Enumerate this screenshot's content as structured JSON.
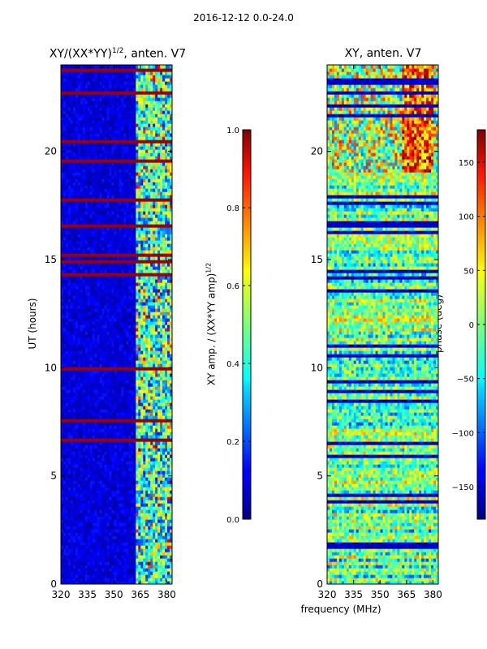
{
  "suptitle": "2016-12-12 0.0-24.0",
  "chart_data": [
    {
      "type": "heatmap",
      "title_main": "XY/(XX*YY)",
      "title_sup": "1/2",
      "title_rest": ", anten. V7",
      "xlabel": "",
      "ylabel": "UT (hours)",
      "xlim": [
        320,
        383
      ],
      "ylim": [
        0,
        24
      ],
      "xticks": [
        320,
        335,
        350,
        365,
        380
      ],
      "yticks": [
        0,
        5,
        10,
        15,
        20
      ],
      "ytick_labels": [
        "0",
        "5",
        "10",
        "15",
        "20"
      ],
      "colorbar": {
        "label_main": "XY amp. / (XX*YY amp)",
        "label_sup": "1/2",
        "range": [
          0.0,
          1.0
        ],
        "ticks": [
          "0.0",
          "0.2",
          "0.4",
          "0.6",
          "0.8",
          "1.0"
        ],
        "tick_values": [
          0.0,
          0.2,
          0.4,
          0.6,
          0.8,
          1.0
        ],
        "colormap": "jet"
      }
    },
    {
      "type": "heatmap",
      "title": "XY, anten. V7",
      "xlabel": "frequency (MHz)",
      "ylabel": "",
      "xlim": [
        320,
        383
      ],
      "ylim": [
        0,
        24
      ],
      "xticks": [
        320,
        335,
        350,
        365,
        380
      ],
      "yticks": [
        0,
        5,
        10,
        15,
        20
      ],
      "ytick_labels": [
        "0",
        "5",
        "10",
        "15",
        "20"
      ],
      "colorbar": {
        "label": "phase (deg)",
        "range": [
          -180,
          180
        ],
        "ticks": [
          "−150",
          "−100",
          "−50",
          "0",
          "50",
          "100",
          "150"
        ],
        "tick_values": [
          -150,
          -100,
          -50,
          0,
          50,
          100,
          150
        ],
        "colormap": "jet"
      }
    }
  ]
}
